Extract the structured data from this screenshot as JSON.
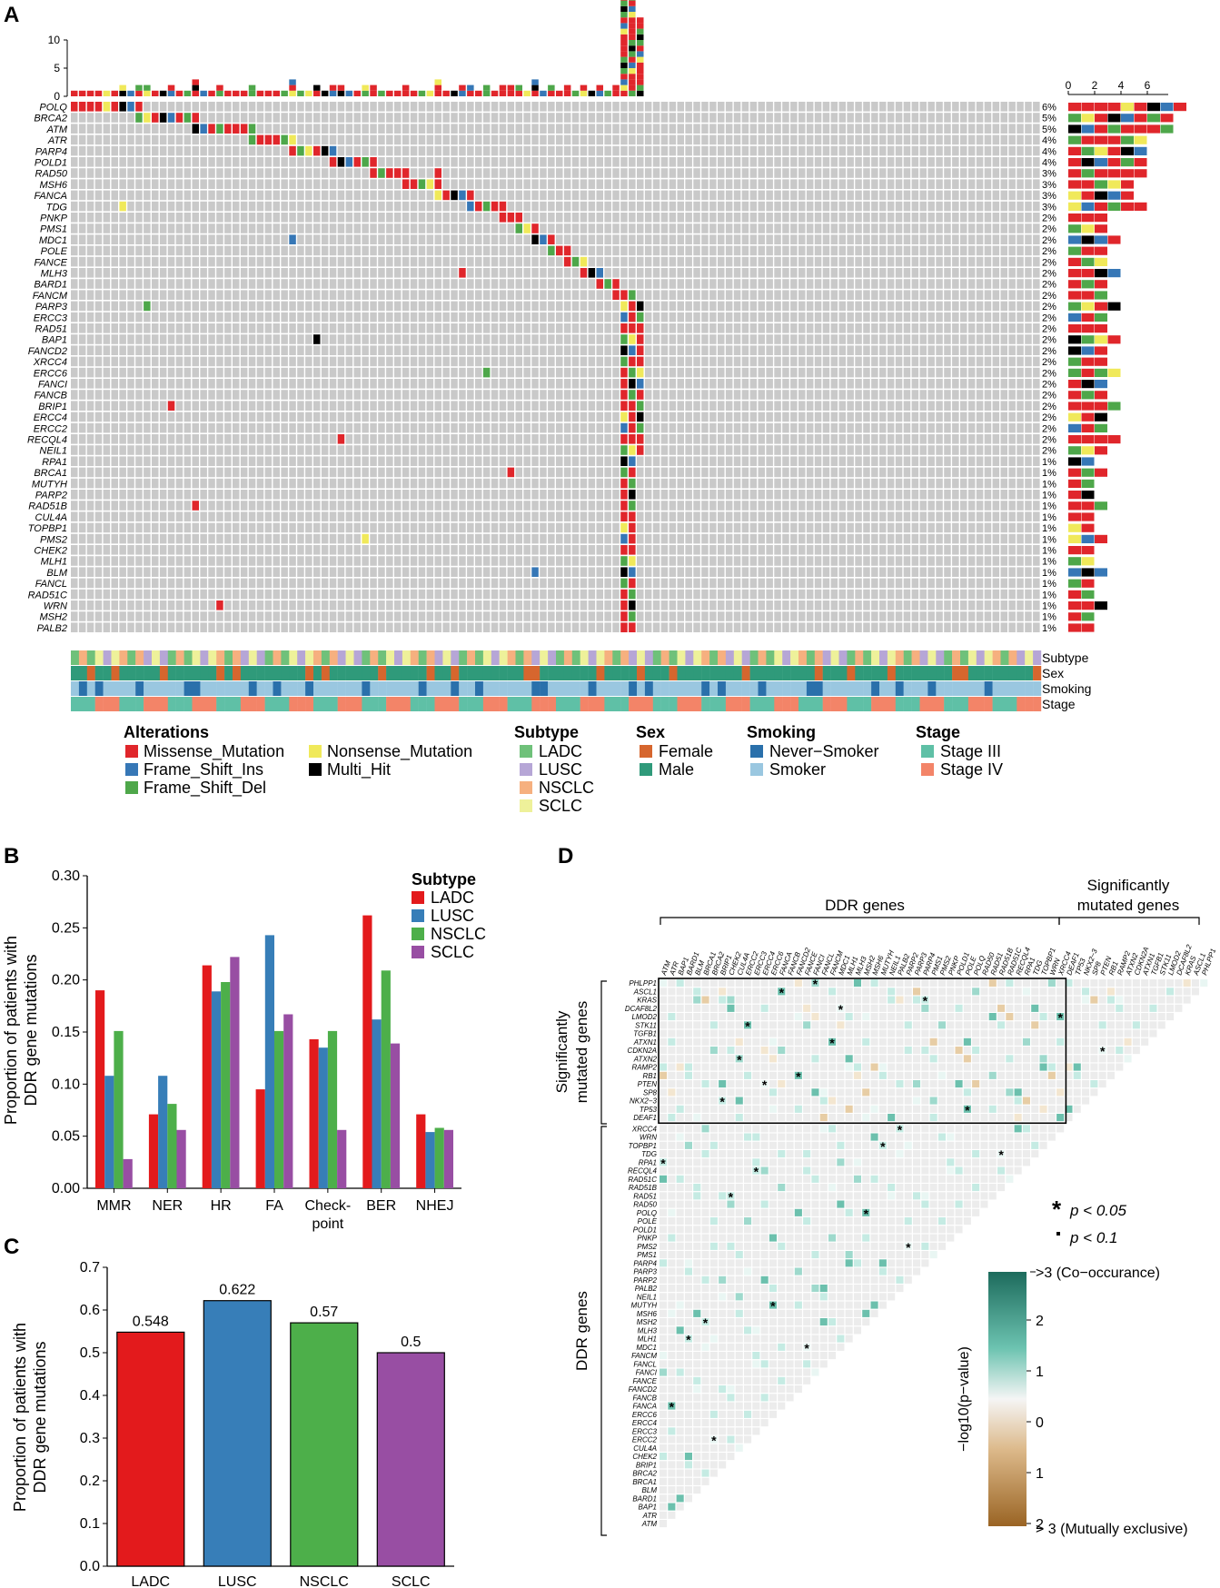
{
  "panels": {
    "a": "A",
    "b": "B",
    "c": "C",
    "d": "D"
  },
  "colors": {
    "missense": "#e0262b",
    "fs_ins": "#3677b6",
    "fs_del": "#4ea74a",
    "nonsense": "#f0e95a",
    "multi": "#000000",
    "empty": "#c9c9c9",
    "ladc": "#6fc17a",
    "lusc": "#b6a6d6",
    "nsclc": "#f6b07f",
    "sclc": "#eef19a",
    "female": "#d6662e",
    "male": "#2f9a7a",
    "never": "#2a70ab",
    "smoker": "#9ac7e0",
    "stage3": "#5fc0a6",
    "stage4": "#f38468",
    "b_ladc": "#e31a1c",
    "b_lusc": "#377eb8",
    "b_nsclc": "#4daf4a",
    "b_sclc": "#984ea3"
  },
  "oncoprint": {
    "top_ticks": [
      "10",
      "5",
      "0"
    ],
    "right_ticks": [
      "0",
      "2",
      "4",
      "6"
    ],
    "genes": [
      "POLQ",
      "BRCA2",
      "ATM",
      "ATR",
      "PARP4",
      "POLD1",
      "RAD50",
      "MSH6",
      "FANCA",
      "TDG",
      "PNKP",
      "PMS1",
      "MDC1",
      "POLE",
      "FANCE",
      "MLH3",
      "BARD1",
      "FANCM",
      "PARP3",
      "ERCC3",
      "RAD51",
      "BAP1",
      "FANCD2",
      "XRCC4",
      "ERCC6",
      "FANCI",
      "FANCB",
      "BRIP1",
      "ERCC4",
      "ERCC2",
      "RECQL4",
      "NEIL1",
      "RPA1",
      "BRCA1",
      "MUTYH",
      "PARP2",
      "RAD51B",
      "CUL4A",
      "TOPBP1",
      "PMS2",
      "CHEK2",
      "MLH1",
      "BLM",
      "FANCL",
      "RAD51C",
      "WRN",
      "MSH2",
      "PALB2"
    ],
    "percents": [
      "6%",
      "5%",
      "5%",
      "4%",
      "4%",
      "4%",
      "3%",
      "3%",
      "3%",
      "3%",
      "2%",
      "2%",
      "2%",
      "2%",
      "2%",
      "2%",
      "2%",
      "2%",
      "2%",
      "2%",
      "2%",
      "2%",
      "2%",
      "2%",
      "2%",
      "2%",
      "2%",
      "2%",
      "2%",
      "2%",
      "2%",
      "2%",
      "1%",
      "1%",
      "1%",
      "1%",
      "1%",
      "1%",
      "1%",
      "1%",
      "1%",
      "1%",
      "1%",
      "1%",
      "1%",
      "1%",
      "1%",
      "1%"
    ],
    "track_labels": [
      "Subtype",
      "Sex",
      "Smoking",
      "Stage"
    ]
  },
  "legend": {
    "alterations_title": "Alterations",
    "alterations": [
      "Missense_Mutation",
      "Frame_Shift_Ins",
      "Frame_Shift_Del",
      "Nonsense_Mutation",
      "Multi_Hit"
    ],
    "subtype_title": "Subtype",
    "subtypes": [
      "LADC",
      "LUSC",
      "NSCLC",
      "SCLC"
    ],
    "sex_title": "Sex",
    "sexes": [
      "Female",
      "Male"
    ],
    "smoking_title": "Smoking",
    "smoking": [
      "Never−Smoker",
      "Smoker"
    ],
    "stage_title": "Stage",
    "stages": [
      "Stage III",
      "Stage IV"
    ]
  },
  "chart_data": [
    {
      "type": "bar",
      "title": "",
      "categories": [
        "MMR",
        "NER",
        "HR",
        "FA",
        "Check-point",
        "BER",
        "NHEJ"
      ],
      "series": [
        {
          "name": "LADC",
          "values": [
            0.19,
            0.071,
            0.214,
            0.095,
            0.143,
            0.262,
            0.071
          ]
        },
        {
          "name": "LUSC",
          "values": [
            0.108,
            0.108,
            0.189,
            0.243,
            0.135,
            0.162,
            0.054
          ]
        },
        {
          "name": "NSCLC",
          "values": [
            0.151,
            0.081,
            0.198,
            0.151,
            0.151,
            0.209,
            0.058
          ]
        },
        {
          "name": "SCLC",
          "values": [
            0.028,
            0.056,
            0.222,
            0.167,
            0.056,
            0.139,
            0.056
          ]
        }
      ],
      "ylim": [
        0,
        0.3
      ],
      "yticks": [
        "0.00",
        "0.05",
        "0.10",
        "0.15",
        "0.20",
        "0.25",
        "0.30"
      ],
      "ylabel": "Proportion of patients with DDR gene mutations",
      "legend_title": "Subtype"
    },
    {
      "type": "bar",
      "categories": [
        "LADC",
        "LUSC",
        "NSCLC",
        "SCLC"
      ],
      "values": [
        0.548,
        0.622,
        0.57,
        0.5
      ],
      "value_labels": [
        "0.548",
        "0.622",
        "0.57",
        "0.5"
      ],
      "ylim": [
        0,
        0.7
      ],
      "yticks": [
        "0.0",
        "0.1",
        "0.2",
        "0.3",
        "0.4",
        "0.5",
        "0.6",
        "0.7"
      ],
      "ylabel": "Proportion of patients with DDR gene mutations"
    }
  ],
  "panel_b": {
    "xlabel_extra": "point",
    "ylabel_line1": "Proportion of patients with",
    "ylabel_line2": "DDR gene mutations"
  },
  "panel_c": {
    "ylabel_line1": "Proportion of patients with",
    "ylabel_line2": "DDR gene mutations"
  },
  "panel_d": {
    "ddr_header": "DDR genes",
    "sig_header_1": "Significantly",
    "sig_header_2": "mutated genes",
    "left_sig_1": "Significantly",
    "left_sig_2": "mutated genes",
    "left_ddr": "DDR genes",
    "col_ddr": [
      "ATM",
      "ATR",
      "BAP1",
      "BARD1",
      "BLM",
      "BRCA1",
      "BRCA2",
      "BRIP1",
      "CHEK2",
      "CUL4A",
      "ERCC2",
      "ERCC3",
      "ERCC4",
      "ERCC6",
      "FANCA",
      "FANCB",
      "FANCD2",
      "FANCE",
      "FANCI",
      "FANCL",
      "FANCM",
      "MDC1",
      "MLH1",
      "MLH3",
      "MSH2",
      "MSH6",
      "MUTYH",
      "NEIL1",
      "PALB2",
      "PARP2",
      "PARP3",
      "PARP4",
      "PMS1",
      "PMS2",
      "PNKP",
      "POLD1",
      "POLE",
      "POLQ",
      "RAD50",
      "RAD51",
      "RAD51B",
      "RAD51C",
      "RECQL4",
      "RPA1",
      "TDG",
      "TOPBP1",
      "WRN",
      "XRCC4"
    ],
    "col_sig": [
      "DEAF1",
      "TP53",
      "NKX2−3",
      "SP8",
      "PTEN",
      "RB1",
      "RAMP2",
      "ATXN2",
      "CDKN2A",
      "ATXN1",
      "TGFB1",
      "STK11",
      "LMOD2",
      "DCAF8L2",
      "KRAS",
      "ASCL1",
      "PHLPP1"
    ],
    "row_sig": [
      "PHLPP1",
      "ASCL1",
      "KRAS",
      "DCAF8L2",
      "LMOD2",
      "STK11",
      "TGFB1",
      "ATXN1",
      "CDKN2A",
      "ATXN2",
      "RAMP2",
      "RB1",
      "PTEN",
      "SP8",
      "NKX2−3",
      "TP53",
      "DEAF1"
    ],
    "row_ddr": [
      "XRCC4",
      "WRN",
      "TOPBP1",
      "TDG",
      "RPA1",
      "RECQL4",
      "RAD51C",
      "RAD51B",
      "RAD51",
      "RAD50",
      "POLQ",
      "POLE",
      "POLD1",
      "PNKP",
      "PMS2",
      "PMS1",
      "PARP4",
      "PARP3",
      "PARP2",
      "PALB2",
      "NEIL1",
      "MUTYH",
      "MSH6",
      "MSH2",
      "MLH3",
      "MLH1",
      "MDC1",
      "FANCM",
      "FANCL",
      "FANCI",
      "FANCE",
      "FANCD2",
      "FANCB",
      "FANCA",
      "ERCC6",
      "ERCC4",
      "ERCC3",
      "ERCC2",
      "CUL4A",
      "CHEK2",
      "BRIP1",
      "BRCA2",
      "BRCA1",
      "BLM",
      "BARD1",
      "BAP1",
      "ATR",
      "ATM"
    ],
    "sig_legend_1": "p < 0.05",
    "sig_legend_2": "p < 0.1",
    "scale_ticks": [
      "2",
      "1",
      "0",
      "1",
      "2"
    ],
    "scale_top": ">3 (Co−occurance)",
    "scale_bottom": "> 3 (Mutually exclusive)",
    "scale_label": "−log10(p−value)"
  }
}
